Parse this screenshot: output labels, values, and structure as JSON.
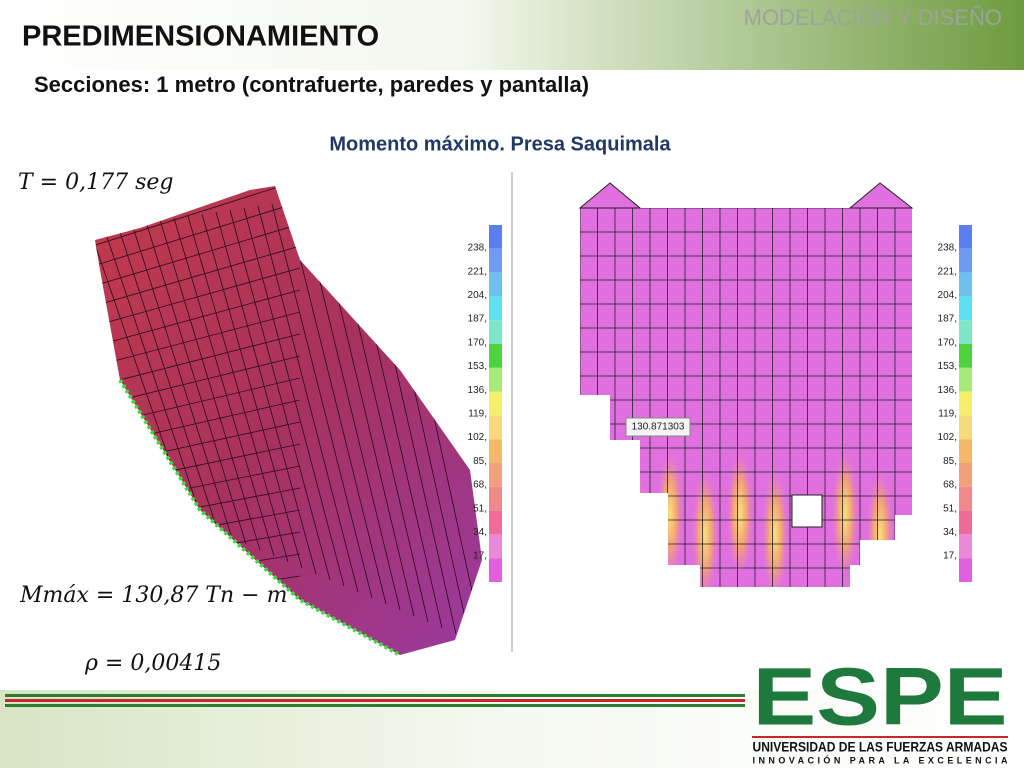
{
  "header": {
    "section": "MODELACIÓN Y DISEÑO",
    "title": "PREDIMENSIONAMIENTO",
    "subtitle": "Secciones: 1 metro (contrafuerte, paredes y pantalla)"
  },
  "figure": {
    "caption": "Momento máximo. Presa Saquimala",
    "period": "T = 0,177 seg",
    "moment": "Mmáx = 130,87 Tn − m",
    "ratio": "ρ = 0,00415",
    "point_label": "130.871303",
    "left_scale": [
      "238,",
      "221,",
      "204,",
      "187,",
      "170,",
      "153,",
      "136,",
      "119,",
      "102,",
      "85,",
      "68,",
      "51,",
      "34,",
      "17,"
    ],
    "right_scale": [
      "238,",
      "221,",
      "204,",
      "187,",
      "170,",
      "153,",
      "136,",
      "119,",
      "102,",
      "85,",
      "68,",
      "51,",
      "34,",
      "17,"
    ]
  },
  "logo": {
    "name": "ESPE",
    "university": "UNIVERSIDAD DE LAS FUERZAS ARMADAS",
    "motto": "INNOVACIÓN PARA LA EXCELENCIA"
  }
}
